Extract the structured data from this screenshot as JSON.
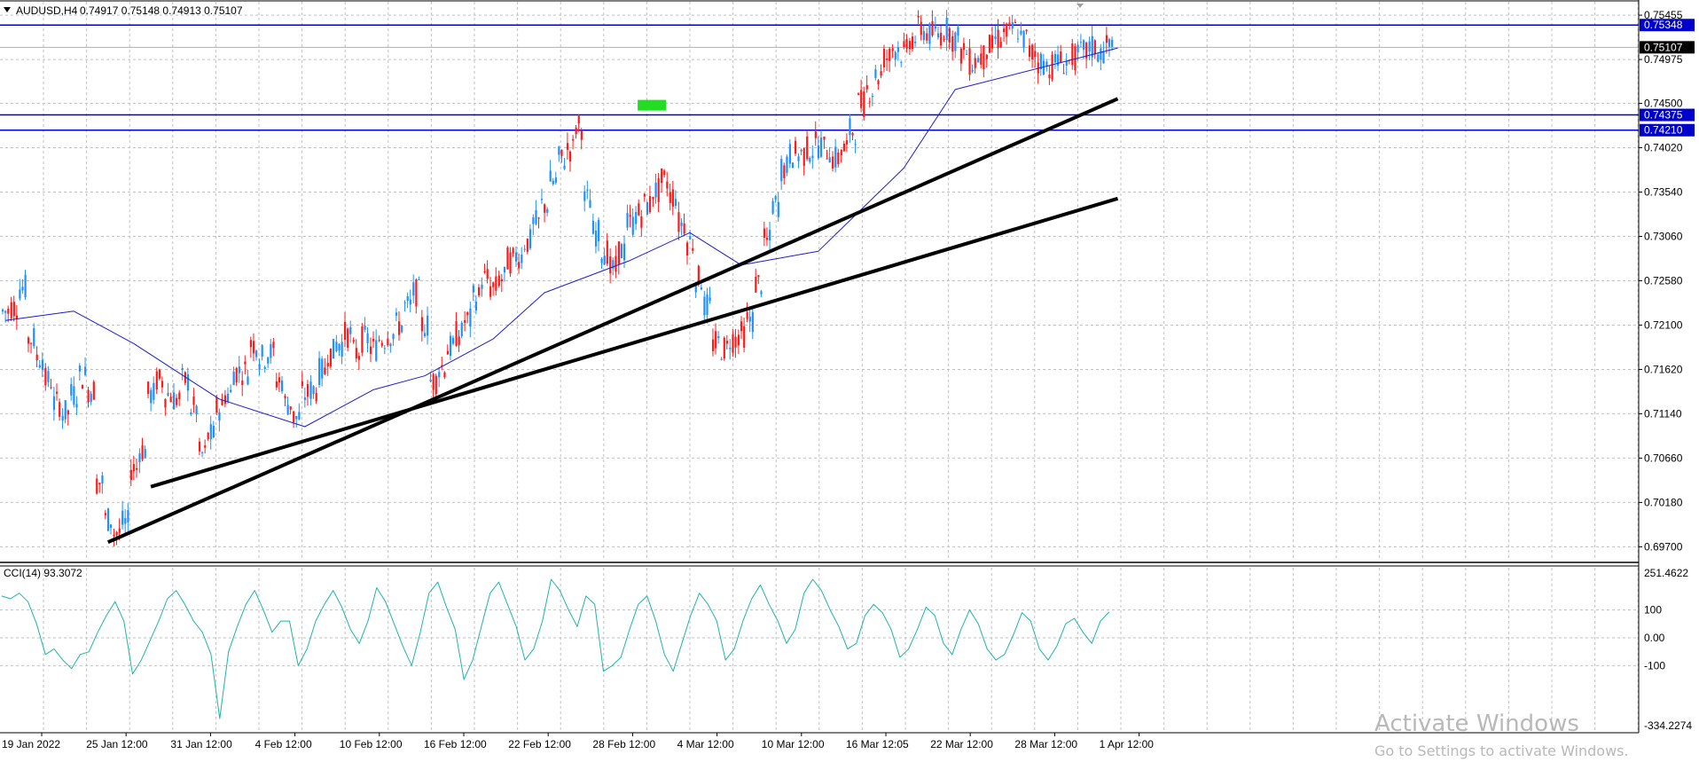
{
  "header": {
    "symbol": "AUDUSD,H4",
    "ohlc": "0.74917 0.75148 0.74913 0.75107",
    "dropdown_icon": "triangle-down-icon"
  },
  "chart_data": {
    "type": "candlestick",
    "main_axis": {
      "ticks": [
        "0.75455",
        "0.74975",
        "0.74500",
        "0.74020",
        "0.73540",
        "0.73060",
        "0.72580",
        "0.72100",
        "0.71620",
        "0.71140",
        "0.70660",
        "0.70180",
        "0.69700"
      ],
      "ylim": [
        0.6955,
        0.756
      ]
    },
    "x_ticks": [
      "19 Jan 2022",
      "25 Jan 12:00",
      "31 Jan 12:00",
      "4 Feb 12:00",
      "10 Feb 12:00",
      "16 Feb 12:00",
      "22 Feb 12:00",
      "28 Feb 12:00",
      "4 Mar 12:00",
      "10 Mar 12:00",
      "16 Mar 12:05",
      "22 Mar 12:00",
      "28 Mar 12:00",
      "1 Apr 12:00"
    ],
    "bar_count": 130,
    "colors": {
      "bull": "#1e90ff",
      "bear": "#ff1a1a",
      "ma": "#1c1cc8",
      "hline": "#0000cd",
      "trend": "#000000",
      "cci": "#20b2aa",
      "grid": "#c0c0c0"
    },
    "close_path": [
      0.7225,
      0.723,
      0.725,
      0.7195,
      0.7175,
      0.715,
      0.7125,
      0.7115,
      0.7135,
      0.7155,
      0.714,
      0.704,
      0.7,
      0.6985,
      0.6995,
      0.7055,
      0.7075,
      0.7135,
      0.715,
      0.7135,
      0.713,
      0.715,
      0.712,
      0.707,
      0.709,
      0.712,
      0.7135,
      0.716,
      0.716,
      0.719,
      0.7175,
      0.718,
      0.715,
      0.7125,
      0.711,
      0.7135,
      0.714,
      0.716,
      0.718,
      0.719,
      0.72,
      0.718,
      0.7195,
      0.7185,
      0.7195,
      0.72,
      0.721,
      0.723,
      0.7245,
      0.721,
      0.715,
      0.7165,
      0.7185,
      0.72,
      0.7215,
      0.724,
      0.726,
      0.725,
      0.726,
      0.728,
      0.7285,
      0.73,
      0.732,
      0.734,
      0.7365,
      0.739,
      0.74,
      0.7425,
      0.7345,
      0.731,
      0.729,
      0.727,
      0.729,
      0.732,
      0.733,
      0.734,
      0.7355,
      0.7365,
      0.735,
      0.732,
      0.73,
      0.726,
      0.723,
      0.719,
      0.7185,
      0.7195,
      0.72,
      0.7215,
      0.7255,
      0.73,
      0.734,
      0.738,
      0.7395,
      0.7395,
      0.74,
      0.7405,
      0.74,
      0.739,
      0.74,
      0.742,
      0.745,
      0.7465,
      0.748,
      0.75,
      0.751,
      0.7505,
      0.752,
      0.753,
      0.7525,
      0.7525,
      0.753,
      0.752,
      0.7505,
      0.7495,
      0.75,
      0.751,
      0.752,
      0.7525,
      0.753,
      0.752,
      0.7505,
      0.7495,
      0.749,
      0.7495,
      0.7495,
      0.75,
      0.7505,
      0.751,
      0.7505,
      0.7511
    ],
    "moving_average": {
      "x": [
        0,
        8,
        15,
        25,
        35,
        43,
        49,
        57,
        63,
        73,
        80,
        86,
        95,
        105,
        111,
        130
      ],
      "y": [
        0.7215,
        0.7225,
        0.719,
        0.713,
        0.71,
        0.714,
        0.7155,
        0.7195,
        0.7245,
        0.728,
        0.731,
        0.7275,
        0.729,
        0.738,
        0.7465,
        0.751
      ]
    },
    "horizontal_lines": [
      {
        "price": 0.75348,
        "label": "0.75348"
      },
      {
        "price": 0.74375,
        "label": "0.74375"
      },
      {
        "price": 0.7421,
        "label": "0.74210"
      }
    ],
    "current_price": {
      "price": 0.75107,
      "label": "0.75107"
    },
    "trend_lines": [
      {
        "x1": 12,
        "y1": 0.6975,
        "x2": 130,
        "y2": 0.7455
      },
      {
        "x1": 17,
        "y1": 0.7035,
        "x2": 130,
        "y2": 0.7347
      }
    ],
    "marker": {
      "x": 74,
      "price": 0.7448
    },
    "indicator": {
      "label": "CCI(14) 93.3072",
      "name": "CCI(14)",
      "ticks": [
        "251.4622",
        "100",
        "0.00",
        "-100",
        "-334.2274"
      ],
      "ylim": [
        -334.2274,
        251.4622
      ],
      "levels": [
        100,
        0,
        -100
      ],
      "values": [
        150,
        140,
        160,
        130,
        50,
        -60,
        -40,
        -80,
        -110,
        -60,
        -50,
        20,
        80,
        130,
        60,
        -130,
        -80,
        -10,
        60,
        140,
        170,
        120,
        60,
        20,
        -60,
        -290,
        -50,
        40,
        120,
        170,
        100,
        20,
        60,
        60,
        -100,
        -40,
        60,
        120,
        170,
        110,
        30,
        -20,
        60,
        180,
        130,
        50,
        -30,
        -100,
        20,
        160,
        200,
        110,
        30,
        -150,
        -80,
        40,
        160,
        200,
        120,
        40,
        -80,
        -40,
        60,
        210,
        170,
        100,
        40,
        150,
        120,
        -120,
        -100,
        -70,
        30,
        120,
        150,
        60,
        -60,
        -120,
        -20,
        80,
        160,
        120,
        60,
        -80,
        -40,
        60,
        140,
        190,
        120,
        60,
        -20,
        30,
        160,
        210,
        170,
        100,
        40,
        -40,
        -20,
        80,
        120,
        90,
        30,
        -70,
        -40,
        30,
        110,
        80,
        -20,
        -60,
        30,
        100,
        50,
        -40,
        -80,
        -60,
        10,
        90,
        60,
        -40,
        -80,
        -30,
        50,
        70,
        20,
        -20,
        60,
        93
      ]
    }
  },
  "watermark": {
    "title": "Activate Windows",
    "subtitle": "Go to Settings to activate Windows."
  }
}
